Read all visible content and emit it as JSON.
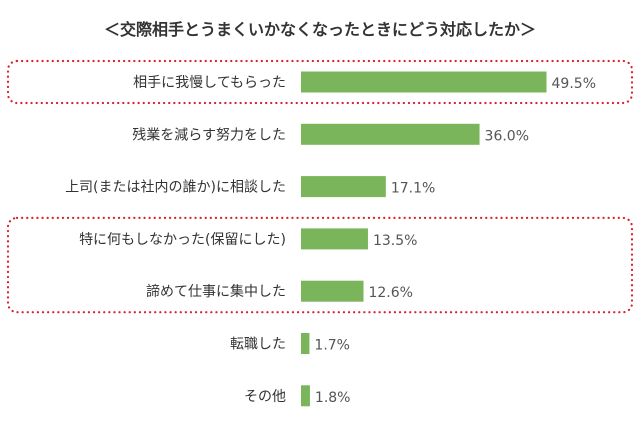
{
  "chart_data": {
    "type": "bar",
    "orientation": "horizontal",
    "title": "＜交際相手とうまくいかなくなったときにどう対応したか＞",
    "categories": [
      "相手に我慢してもらった",
      "残業を減らす努力をした",
      "上司(または社内の誰か)に相談した",
      "特に何もしなかった(保留にした)",
      "諦めて仕事に集中した",
      "転職した",
      "その他"
    ],
    "values": [
      49.5,
      36.0,
      17.1,
      13.5,
      12.6,
      1.7,
      1.8
    ],
    "value_labels": [
      "49.5%",
      "36.0%",
      "17.1%",
      "13.5%",
      "12.6%",
      "1.7%",
      "1.8%"
    ],
    "unit": "%",
    "xlim": [
      0,
      50
    ],
    "grid": false,
    "legend": "none",
    "highlight_groups": [
      [
        0
      ],
      [
        3,
        4
      ]
    ],
    "colors": {
      "bar": "#7ab55c",
      "highlight": "#d9202c",
      "text": "#333333"
    }
  }
}
